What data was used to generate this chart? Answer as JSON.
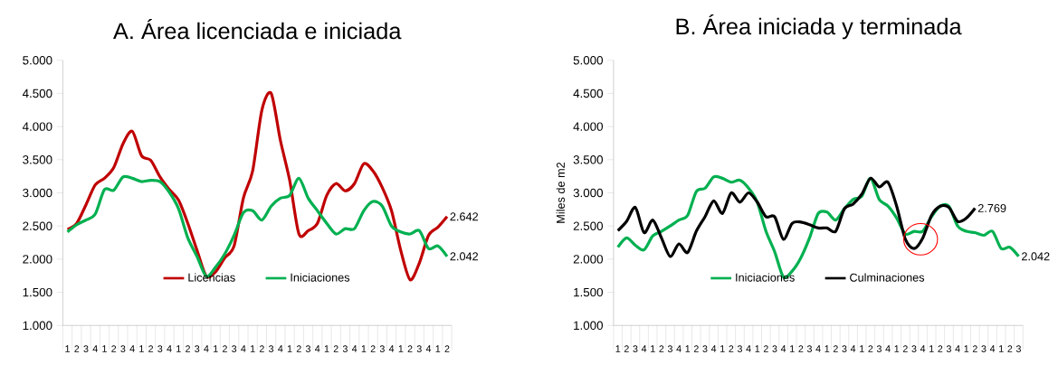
{
  "chart_data": [
    {
      "type": "line",
      "title": "A.  Área licenciada e iniciada",
      "categories": [
        "1",
        "2",
        "3",
        "4",
        "1",
        "2",
        "3",
        "4",
        "1",
        "2",
        "3",
        "4",
        "1",
        "2",
        "3",
        "4",
        "1",
        "2",
        "3",
        "4",
        "1",
        "2",
        "3",
        "4",
        "1",
        "2",
        "3",
        "4",
        "1",
        "2",
        "3",
        "4",
        "1",
        "2",
        "3",
        "4",
        "1",
        "2",
        "3",
        "4",
        "1",
        "2"
      ],
      "series": [
        {
          "name": "Licencias",
          "color": "#c00000",
          "values": [
            2450,
            2540,
            2820,
            3120,
            3220,
            3380,
            3740,
            3930,
            3560,
            3490,
            3240,
            3050,
            2890,
            2540,
            2130,
            1740,
            1810,
            2020,
            2200,
            2920,
            3330,
            4250,
            4500,
            3790,
            3190,
            2380,
            2430,
            2540,
            2960,
            3140,
            3030,
            3140,
            3440,
            3330,
            3080,
            2730,
            2130,
            1690,
            1940,
            2360,
            2480,
            2642
          ],
          "value_labels": [
            null,
            null,
            null,
            null,
            null,
            null,
            null,
            null,
            null,
            null,
            null,
            null,
            null,
            null,
            null,
            null,
            null,
            null,
            null,
            null,
            null,
            null,
            null,
            null,
            null,
            null,
            null,
            null,
            null,
            null,
            null,
            null,
            null,
            null,
            null,
            null,
            null,
            null,
            null,
            null,
            null,
            "2.642"
          ]
        },
        {
          "name": "Iniciaciones",
          "color": "#00b050",
          "values": [
            2410,
            2520,
            2590,
            2680,
            3050,
            3040,
            3240,
            3220,
            3170,
            3190,
            3170,
            3010,
            2760,
            2320,
            2040,
            1740,
            1880,
            2080,
            2360,
            2700,
            2730,
            2590,
            2800,
            2920,
            2960,
            3220,
            2920,
            2730,
            2540,
            2380,
            2460,
            2460,
            2730,
            2870,
            2800,
            2500,
            2410,
            2380,
            2430,
            2160,
            2200,
            2042
          ],
          "value_labels": [
            null,
            null,
            null,
            null,
            null,
            null,
            null,
            null,
            null,
            null,
            null,
            null,
            null,
            null,
            null,
            null,
            null,
            null,
            null,
            null,
            null,
            null,
            null,
            null,
            null,
            null,
            null,
            null,
            null,
            null,
            null,
            null,
            null,
            null,
            null,
            null,
            null,
            null,
            null,
            null,
            null,
            "2.042"
          ]
        }
      ],
      "ylim": [
        1000,
        5000
      ],
      "yticks": [
        {
          "value": 1000,
          "label": "1.000"
        },
        {
          "value": 1500,
          "label": "1.500"
        },
        {
          "value": 2000,
          "label": "2.000"
        },
        {
          "value": 2500,
          "label": "2.500"
        },
        {
          "value": 3000,
          "label": "3.000"
        },
        {
          "value": 3500,
          "label": "3.500"
        },
        {
          "value": 4000,
          "label": "4.000"
        },
        {
          "value": 4500,
          "label": "4.500"
        },
        {
          "value": 5000,
          "label": "5.000"
        }
      ],
      "legend": "bottom"
    },
    {
      "type": "line",
      "title": "B.  Área iniciada y terminada",
      "ylabel": "Miles de m2",
      "categories": [
        "1",
        "2",
        "3",
        "4",
        "1",
        "2",
        "3",
        "4",
        "1",
        "2",
        "3",
        "4",
        "1",
        "2",
        "3",
        "4",
        "1",
        "2",
        "3",
        "4",
        "1",
        "2",
        "3",
        "4",
        "1",
        "2",
        "3",
        "4",
        "1",
        "2",
        "3",
        "4",
        "1",
        "2",
        "3",
        "4",
        "1",
        "2",
        "3",
        "4",
        "1",
        "2",
        "3",
        "4",
        "1",
        "2",
        "3"
      ],
      "series": [
        {
          "name": "Iniciaciones",
          "color": "#00b050",
          "values": [
            2180,
            2320,
            2210,
            2140,
            2350,
            2420,
            2500,
            2590,
            2660,
            3020,
            3070,
            3240,
            3220,
            3160,
            3190,
            3070,
            2860,
            2420,
            2110,
            1730,
            1820,
            2020,
            2320,
            2690,
            2710,
            2590,
            2760,
            2900,
            2950,
            3220,
            2900,
            2800,
            2620,
            2380,
            2420,
            2420,
            2640,
            2800,
            2800,
            2500,
            2420,
            2400,
            2360,
            2420,
            2160,
            2180,
            2042
          ],
          "value_labels": [
            null,
            null,
            null,
            null,
            null,
            null,
            null,
            null,
            null,
            null,
            null,
            null,
            null,
            null,
            null,
            null,
            null,
            null,
            null,
            null,
            null,
            null,
            null,
            null,
            null,
            null,
            null,
            null,
            null,
            null,
            null,
            null,
            null,
            null,
            null,
            null,
            null,
            null,
            null,
            null,
            null,
            null,
            null,
            null,
            null,
            null,
            "2.042"
          ]
        },
        {
          "name": "Culminaciones",
          "color": "#000000",
          "values": [
            2430,
            2570,
            2780,
            2400,
            2590,
            2320,
            2040,
            2230,
            2100,
            2420,
            2640,
            2880,
            2690,
            3000,
            2860,
            3000,
            2860,
            2640,
            2640,
            2300,
            2540,
            2560,
            2520,
            2470,
            2470,
            2420,
            2760,
            2830,
            2980,
            3220,
            3090,
            3160,
            2800,
            2300,
            2160,
            2320,
            2660,
            2800,
            2780,
            2570,
            2620,
            2769,
            null,
            null,
            null,
            null,
            null
          ],
          "value_labels": [
            null,
            null,
            null,
            null,
            null,
            null,
            null,
            null,
            null,
            null,
            null,
            null,
            null,
            null,
            null,
            null,
            null,
            null,
            null,
            null,
            null,
            null,
            null,
            null,
            null,
            null,
            null,
            null,
            null,
            null,
            null,
            null,
            null,
            null,
            null,
            null,
            null,
            null,
            null,
            null,
            null,
            "2.769",
            null,
            null,
            null,
            null,
            null
          ]
        }
      ],
      "ylim": [
        1000,
        5000
      ],
      "yticks": [
        {
          "value": 1000,
          "label": "1.000"
        },
        {
          "value": 1500,
          "label": "1.500"
        },
        {
          "value": 2000,
          "label": "2.000"
        },
        {
          "value": 2500,
          "label": "2.500"
        },
        {
          "value": 3000,
          "label": "3.000"
        },
        {
          "value": 3500,
          "label": "3.500"
        },
        {
          "value": 4000,
          "label": "4.000"
        },
        {
          "value": 4500,
          "label": "4.500"
        },
        {
          "value": 5000,
          "label": "5.000"
        }
      ],
      "legend": "bottom"
    }
  ]
}
